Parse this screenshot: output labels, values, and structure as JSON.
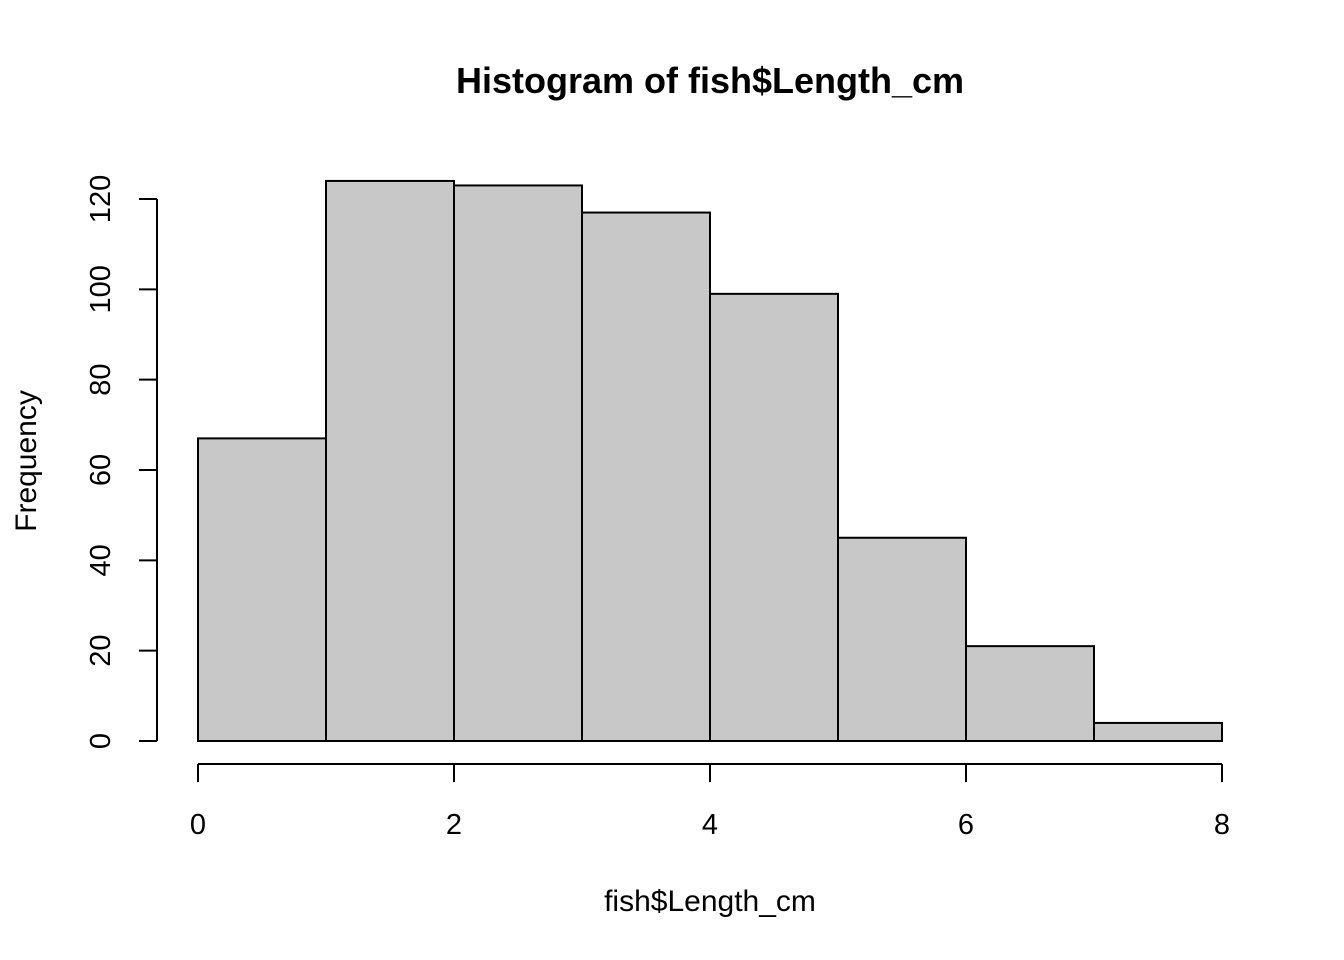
{
  "chart_data": {
    "type": "bar",
    "title": "Histogram of fish$Length_cm",
    "xlabel": "fish$Length_cm",
    "ylabel": "Frequency",
    "bin_edges": [
      0,
      1,
      2,
      3,
      4,
      5,
      6,
      7,
      8
    ],
    "values": [
      67,
      124,
      123,
      117,
      99,
      45,
      21,
      4
    ],
    "xlim": [
      0,
      8
    ],
    "ylim": [
      0,
      120
    ],
    "x_ticks": [
      0,
      2,
      4,
      6,
      8
    ],
    "y_ticks": [
      0,
      20,
      40,
      60,
      80,
      100,
      120
    ],
    "bar_color": "#c8c8c8",
    "grid": false
  }
}
